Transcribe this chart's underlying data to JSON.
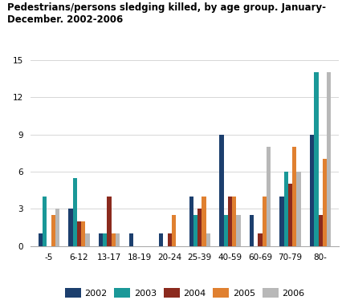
{
  "title": "Pedestrians/persons sledging killed, by age group. January-\nDecember. 2002-2006",
  "categories": [
    "-5",
    "6-12",
    "13-17",
    "18-19",
    "20-24",
    "25-39",
    "40-59",
    "60-69",
    "70-79",
    "80-"
  ],
  "series": {
    "2002": [
      1,
      3,
      1,
      1,
      1,
      4,
      9,
      2.5,
      4,
      9
    ],
    "2003": [
      4,
      5.5,
      1,
      0,
      0,
      2.5,
      2.5,
      0,
      6,
      14
    ],
    "2004": [
      0,
      2,
      4,
      0,
      1,
      3,
      4,
      1,
      5,
      2.5
    ],
    "2005": [
      2.5,
      2,
      1,
      0,
      2.5,
      4,
      4,
      4,
      8,
      7
    ],
    "2006": [
      3,
      1,
      1,
      0,
      0,
      1,
      2.5,
      8,
      6,
      14
    ]
  },
  "colors": {
    "2002": "#1c3f6e",
    "2003": "#1a9898",
    "2004": "#8b2a1e",
    "2005": "#e08030",
    "2006": "#b8b8b8"
  },
  "ylim": [
    0,
    15
  ],
  "yticks": [
    0,
    3,
    6,
    9,
    12,
    15
  ],
  "background_color": "#ffffff",
  "grid_color": "#d0d0d0"
}
